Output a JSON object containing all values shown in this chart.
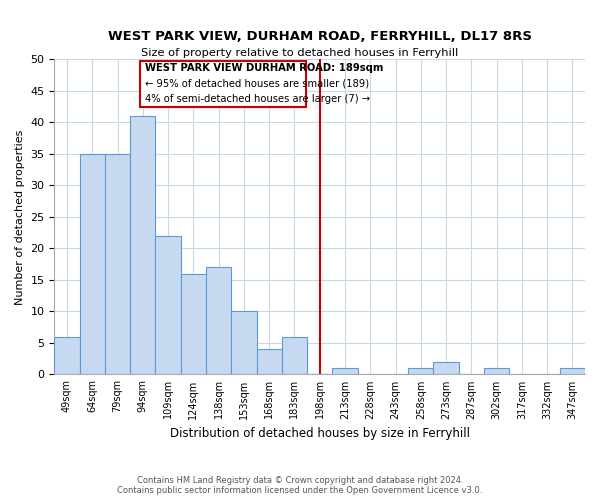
{
  "title": "WEST PARK VIEW, DURHAM ROAD, FERRYHILL, DL17 8RS",
  "subtitle": "Size of property relative to detached houses in Ferryhill",
  "xlabel": "Distribution of detached houses by size in Ferryhill",
  "ylabel": "Number of detached properties",
  "bar_labels": [
    "49sqm",
    "64sqm",
    "79sqm",
    "94sqm",
    "109sqm",
    "124sqm",
    "138sqm",
    "153sqm",
    "168sqm",
    "183sqm",
    "198sqm",
    "213sqm",
    "228sqm",
    "243sqm",
    "258sqm",
    "273sqm",
    "287sqm",
    "302sqm",
    "317sqm",
    "332sqm",
    "347sqm"
  ],
  "bar_values": [
    6,
    35,
    35,
    41,
    22,
    16,
    17,
    10,
    4,
    6,
    0,
    1,
    0,
    0,
    1,
    2,
    0,
    1,
    0,
    0,
    1
  ],
  "bar_color": "#c6d9f0",
  "bar_edge_color": "#5b9bd5",
  "marker_line_color": "#cc0000",
  "annotation_line1": "WEST PARK VIEW DURHAM ROAD: 189sqm",
  "annotation_line2": "← 95% of detached houses are smaller (189)",
  "annotation_line3": "4% of semi-detached houses are larger (7) →",
  "ylim": [
    0,
    50
  ],
  "yticks": [
    0,
    5,
    10,
    15,
    20,
    25,
    30,
    35,
    40,
    45,
    50
  ],
  "footnote1": "Contains HM Land Registry data © Crown copyright and database right 2024.",
  "footnote2": "Contains public sector information licensed under the Open Government Licence v3.0.",
  "bg_color": "#ffffff",
  "grid_color": "#c8d8ea"
}
